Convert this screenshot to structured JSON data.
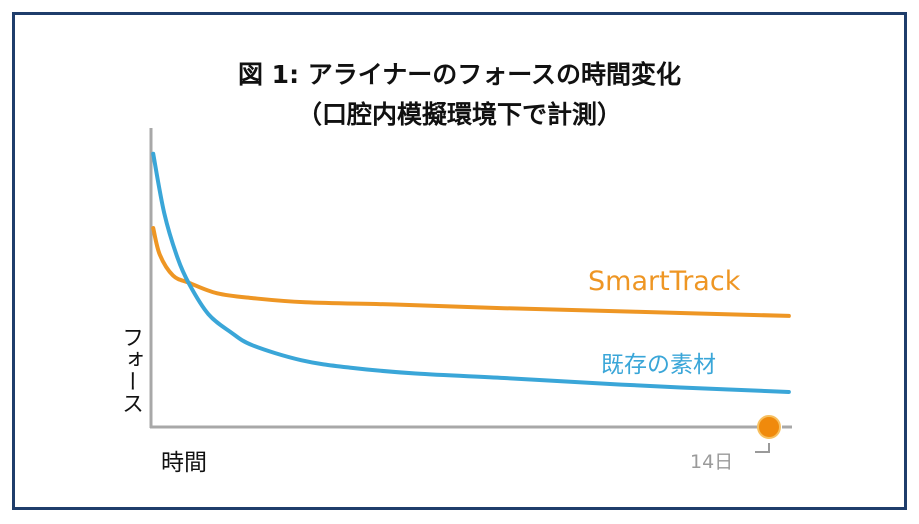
{
  "chart_data": {
    "type": "line",
    "title": "図 1:  アライナーのフォースの時間変化",
    "subtitle": "（口腔内模擬環境下で計測）",
    "xlabel": "時間",
    "ylabel": "フォース",
    "x_unit": "days",
    "xlim": [
      0,
      14.5
    ],
    "ylim": [
      0,
      100
    ],
    "grid": false,
    "x_marker": {
      "value": 14,
      "label": "14日",
      "color": "#f08a0c"
    },
    "series": [
      {
        "name": "SmartTrack",
        "color": "#ee9624",
        "x": [
          0.05,
          0.2,
          0.5,
          0.87,
          1.5,
          2.3,
          3.5,
          5.6,
          8,
          11,
          14.45
        ],
        "y": [
          67,
          58,
          51,
          48.5,
          45,
          43.4,
          42,
          41.2,
          40,
          38.8,
          37.4
        ]
      },
      {
        "name": "既存の素材",
        "color": "#3aa6d8",
        "x": [
          0.05,
          0.3,
          0.6,
          0.87,
          1.3,
          1.8,
          2.3,
          3.4,
          4.5,
          6,
          8,
          10,
          12,
          14.45
        ],
        "y": [
          92,
          72,
          57,
          48,
          38,
          32,
          27.5,
          22.5,
          20,
          18,
          16.5,
          14.8,
          13.3,
          11.8
        ]
      }
    ]
  }
}
